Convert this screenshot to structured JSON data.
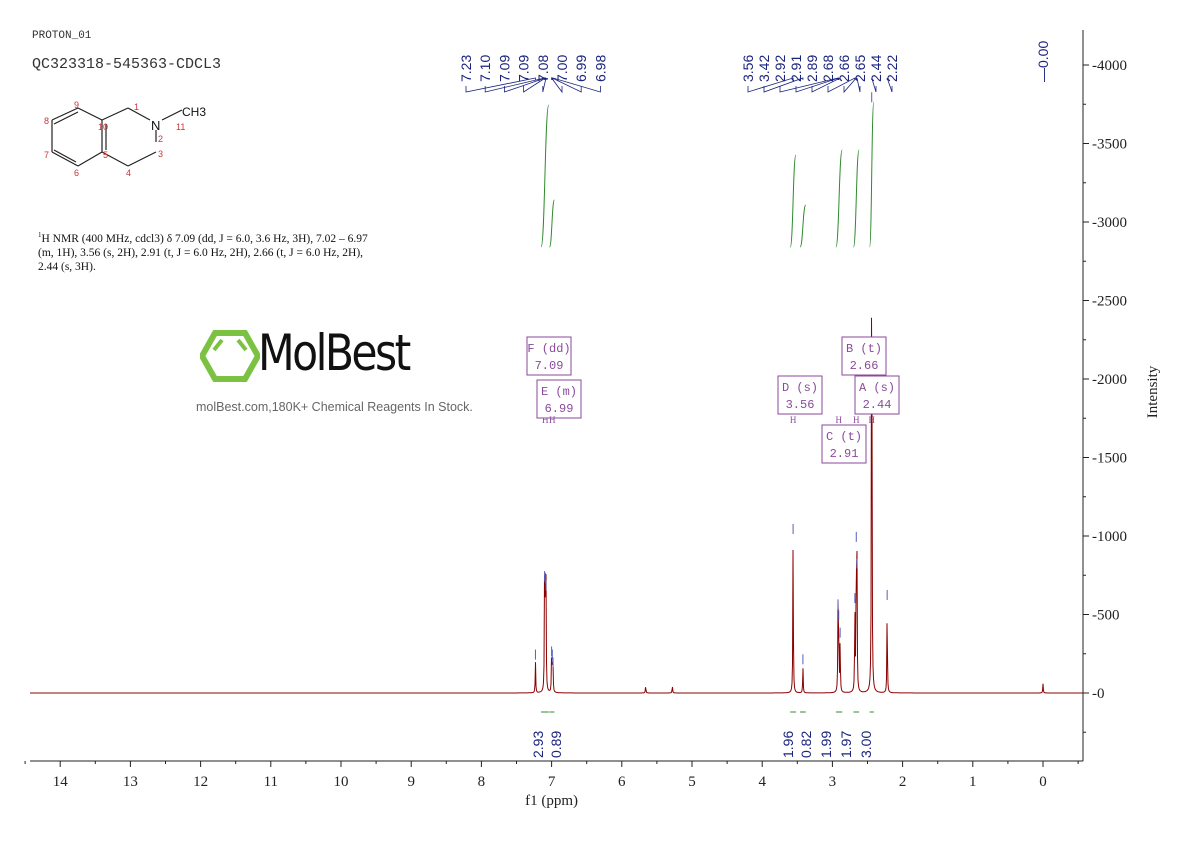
{
  "header": {
    "experiment": "PROTON_01",
    "sample": "QC323318-545363-CDCL3"
  },
  "structure": {
    "substituent": "CH3",
    "atom_numbers": [
      "1",
      "2",
      "3",
      "4",
      "5",
      "6",
      "7",
      "8",
      "9",
      "10",
      "11"
    ],
    "heteroatom": "N"
  },
  "description": {
    "nucleus_sup": "1",
    "text": "H NMR (400 MHz, cdcl3) δ 7.09 (dd, J = 6.0, 3.6 Hz, 3H), 7.02 – 6.97 (m, 1H), 3.56 (s, 2H), 2.91 (t, J = 6.0 Hz, 2H), 2.66 (t, J = 6.0 Hz, 2H), 2.44 (s, 3H)."
  },
  "watermark": {
    "brand": "MolBest",
    "tagline": "molBest.com,180K+ Chemical Reagents In Stock."
  },
  "chart_data": {
    "type": "line",
    "xlabel": "f1 (ppm)",
    "ylabel": "Intensity",
    "xlim": [
      14.4,
      -0.5
    ],
    "ylim": [
      -400,
      4200
    ],
    "x_ticks": [
      14,
      13,
      12,
      11,
      10,
      9,
      8,
      7,
      6,
      5,
      4,
      3,
      2,
      1,
      0
    ],
    "y_ticks": [
      0,
      500,
      1000,
      1500,
      2000,
      2500,
      3000,
      3500,
      4000
    ],
    "peaks": [
      {
        "ppm": 7.23,
        "h": 200
      },
      {
        "ppm": 7.1,
        "h": 700
      },
      {
        "ppm": 7.09,
        "h": 690
      },
      {
        "ppm": 7.08,
        "h": 640
      },
      {
        "ppm": 7.0,
        "h": 220
      },
      {
        "ppm": 6.99,
        "h": 200
      },
      {
        "ppm": 6.98,
        "h": 150
      },
      {
        "ppm": 5.66,
        "h": 50
      },
      {
        "ppm": 5.28,
        "h": 50
      },
      {
        "ppm": 3.56,
        "h": 1000
      },
      {
        "ppm": 3.42,
        "h": 170
      },
      {
        "ppm": 2.92,
        "h": 520
      },
      {
        "ppm": 2.91,
        "h": 450
      },
      {
        "ppm": 2.89,
        "h": 340
      },
      {
        "ppm": 2.68,
        "h": 560
      },
      {
        "ppm": 2.66,
        "h": 950
      },
      {
        "ppm": 2.65,
        "h": 780
      },
      {
        "ppm": 2.44,
        "h": 3750
      },
      {
        "ppm": 2.22,
        "h": 580
      },
      {
        "ppm": 0.0,
        "h": 60
      }
    ],
    "peak_labels_left": [
      "7.23",
      "7.10",
      "7.09",
      "7.09",
      "7.08",
      "7.00",
      "6.99",
      "6.98"
    ],
    "peak_labels_right": [
      "3.56",
      "3.42",
      "2.92",
      "2.91",
      "2.89",
      "2.68",
      "2.66",
      "2.65",
      "2.44",
      "2.22"
    ],
    "peak_label_tms": "0.00",
    "integrals": [
      {
        "from": 7.15,
        "to": 7.04,
        "value": "2.93"
      },
      {
        "from": 7.03,
        "to": 6.96,
        "value": "0.89"
      },
      {
        "from": 3.6,
        "to": 3.52,
        "value": "1.96"
      },
      {
        "from": 3.46,
        "to": 3.38,
        "value": "0.82"
      },
      {
        "from": 2.95,
        "to": 2.86,
        "value": "1.99"
      },
      {
        "from": 2.7,
        "to": 2.62,
        "value": "1.97"
      },
      {
        "from": 2.47,
        "to": 2.41,
        "value": "3.00"
      }
    ],
    "multiplets": [
      {
        "id": "F",
        "type": "(dd)",
        "shift": "7.09"
      },
      {
        "id": "E",
        "type": "(m)",
        "shift": "6.99"
      },
      {
        "id": "D",
        "type": "(s)",
        "shift": "3.56"
      },
      {
        "id": "C",
        "type": "(t)",
        "shift": "2.91"
      },
      {
        "id": "B",
        "type": "(t)",
        "shift": "2.66"
      },
      {
        "id": "A",
        "type": "(s)",
        "shift": "2.44"
      }
    ]
  }
}
